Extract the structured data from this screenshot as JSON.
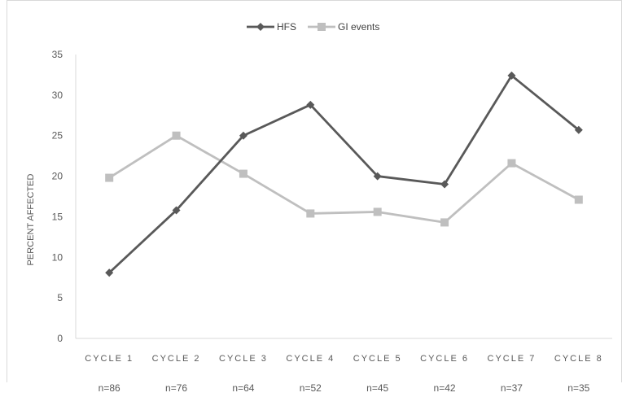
{
  "chart_data": {
    "type": "line",
    "categories": [
      "CYCLE 1",
      "CYCLE 2",
      "CYCLE 3",
      "CYCLE 4",
      "CYCLE 5",
      "CYCLE 6",
      "CYCLE 7",
      "CYCLE 8"
    ],
    "sample_sizes": [
      "n=86",
      "n=76",
      "n=64",
      "n=52",
      "n=45",
      "n=42",
      "n=37",
      "n=35"
    ],
    "series": [
      {
        "name": "HFS",
        "marker": "diamond",
        "color": "#595959",
        "values": [
          8.1,
          15.8,
          25.0,
          28.8,
          20.0,
          19.0,
          32.4,
          25.7
        ]
      },
      {
        "name": "GI events",
        "marker": "square",
        "color": "#bfbfbf",
        "values": [
          19.8,
          25.0,
          20.3,
          15.4,
          15.6,
          14.3,
          21.6,
          17.1
        ]
      }
    ],
    "ylabel": "PERCENT AFFECTED",
    "ylim": [
      0,
      35
    ],
    "yticks": [
      0,
      5,
      10,
      15,
      20,
      25,
      30,
      35
    ],
    "legend_position": "top",
    "grid": false
  }
}
